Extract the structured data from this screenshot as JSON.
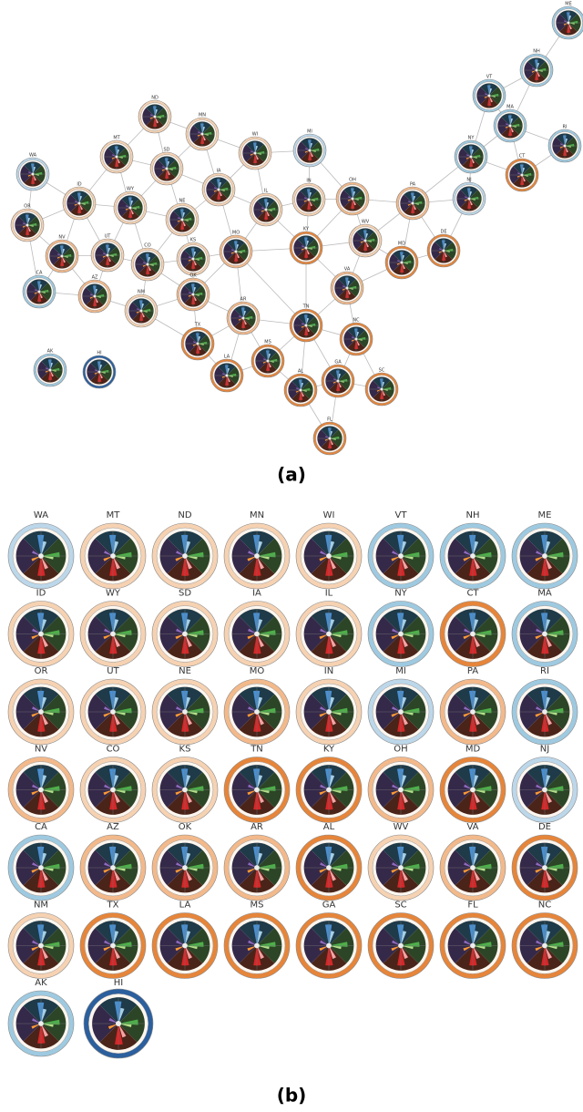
{
  "map": {
    "caption": "(a)",
    "nodes": [
      {
        "label": "ME"
      },
      {
        "label": "NH"
      },
      {
        "label": "VT"
      },
      {
        "label": "MA"
      },
      {
        "label": "RI"
      },
      {
        "label": "NY"
      },
      {
        "label": "CT"
      },
      {
        "label": "WA"
      },
      {
        "label": "MT"
      },
      {
        "label": "ND"
      },
      {
        "label": "MN"
      },
      {
        "label": "WI"
      },
      {
        "label": "MI"
      },
      {
        "label": "SD"
      },
      {
        "label": "ID"
      },
      {
        "label": "WY"
      },
      {
        "label": "IA"
      },
      {
        "label": "IL"
      },
      {
        "label": "IN"
      },
      {
        "label": "OH"
      },
      {
        "label": "PA"
      },
      {
        "label": "NJ"
      },
      {
        "label": "OR"
      },
      {
        "label": "NE"
      },
      {
        "label": "NV"
      },
      {
        "label": "UT"
      },
      {
        "label": "CO"
      },
      {
        "label": "KS"
      },
      {
        "label": "MO"
      },
      {
        "label": "KY"
      },
      {
        "label": "WV"
      },
      {
        "label": "MD"
      },
      {
        "label": "DE"
      },
      {
        "label": "VA"
      },
      {
        "label": "CA"
      },
      {
        "label": "AZ"
      },
      {
        "label": "OK"
      },
      {
        "label": "NM"
      },
      {
        "label": "AR"
      },
      {
        "label": "TN"
      },
      {
        "label": "NC"
      },
      {
        "label": "TX"
      },
      {
        "label": "MS"
      },
      {
        "label": "LA"
      },
      {
        "label": "AL"
      },
      {
        "label": "GA"
      },
      {
        "label": "SC"
      },
      {
        "label": "FL"
      },
      {
        "label": "AK"
      },
      {
        "label": "HI"
      }
    ]
  },
  "grid": {
    "caption": "(b)",
    "cells": [
      {
        "label": "WA",
        "ring": "#bcd7ea"
      },
      {
        "label": "MT",
        "ring": "#f6d2b2"
      },
      {
        "label": "ND",
        "ring": "#f6d2b2"
      },
      {
        "label": "MN",
        "ring": "#f6d2b2"
      },
      {
        "label": "WI",
        "ring": "#f6d2b2"
      },
      {
        "label": "VT",
        "ring": "#9ecae1"
      },
      {
        "label": "NH",
        "ring": "#9ecae1"
      },
      {
        "label": "ME",
        "ring": "#9ecae1"
      },
      {
        "label": "ID",
        "ring": "#f6d2b2"
      },
      {
        "label": "WY",
        "ring": "#f6d2b2"
      },
      {
        "label": "SD",
        "ring": "#f6d2b2"
      },
      {
        "label": "IA",
        "ring": "#f6d2b2"
      },
      {
        "label": "IL",
        "ring": "#f6d2b2"
      },
      {
        "label": "NY",
        "ring": "#9ecae1"
      },
      {
        "label": "CT",
        "ring": "#e6853a"
      },
      {
        "label": "MA",
        "ring": "#9ecae1"
      },
      {
        "label": "OR",
        "ring": "#f6d2b2"
      },
      {
        "label": "UT",
        "ring": "#f6d2b2"
      },
      {
        "label": "NE",
        "ring": "#f6d2b2"
      },
      {
        "label": "MO",
        "ring": "#f3b98a"
      },
      {
        "label": "IN",
        "ring": "#f6d2b2"
      },
      {
        "label": "MI",
        "ring": "#bcd7ea"
      },
      {
        "label": "PA",
        "ring": "#f3b98a"
      },
      {
        "label": "RI",
        "ring": "#9ecae1"
      },
      {
        "label": "NV",
        "ring": "#f3b98a"
      },
      {
        "label": "CO",
        "ring": "#f6d2b2"
      },
      {
        "label": "KS",
        "ring": "#f6d2b2"
      },
      {
        "label": "TN",
        "ring": "#e6853a"
      },
      {
        "label": "KY",
        "ring": "#e6853a"
      },
      {
        "label": "OH",
        "ring": "#f3b98a"
      },
      {
        "label": "MD",
        "ring": "#e6853a"
      },
      {
        "label": "NJ",
        "ring": "#bcd7ea"
      },
      {
        "label": "CA",
        "ring": "#9ecae1"
      },
      {
        "label": "AZ",
        "ring": "#f3b98a"
      },
      {
        "label": "OK",
        "ring": "#f3b98a"
      },
      {
        "label": "AR",
        "ring": "#f3b98a"
      },
      {
        "label": "AL",
        "ring": "#e6853a"
      },
      {
        "label": "WV",
        "ring": "#f6d2b2"
      },
      {
        "label": "VA",
        "ring": "#f3b98a"
      },
      {
        "label": "DE",
        "ring": "#e6853a"
      },
      {
        "label": "NM",
        "ring": "#f6d2b2"
      },
      {
        "label": "TX",
        "ring": "#e6853a"
      },
      {
        "label": "LA",
        "ring": "#e6853a"
      },
      {
        "label": "MS",
        "ring": "#e6853a"
      },
      {
        "label": "GA",
        "ring": "#e6853a"
      },
      {
        "label": "SC",
        "ring": "#e6853a"
      },
      {
        "label": "FL",
        "ring": "#e6853a"
      },
      {
        "label": "NC",
        "ring": "#e6853a"
      },
      {
        "label": "AK",
        "ring": "#9ecae1"
      },
      {
        "label": "HI",
        "ring": "#2b5f9e"
      }
    ]
  }
}
